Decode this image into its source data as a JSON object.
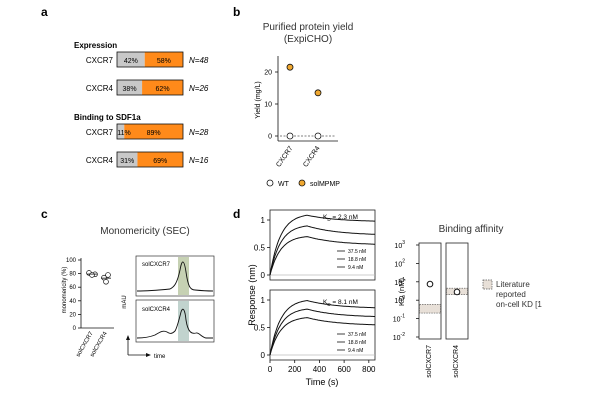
{
  "panel_labels": {
    "a": "a",
    "b": "b",
    "c": "c",
    "d": "d"
  },
  "panel_a": {
    "sections": [
      {
        "title": "Expression",
        "rows": [
          {
            "label": "CXCR7",
            "grey_pct": 42,
            "grey_text": "42%",
            "orange_text": "58%",
            "n_text": "N=48"
          },
          {
            "label": "CXCR4",
            "grey_pct": 38,
            "grey_text": "38%",
            "orange_text": "62%",
            "n_text": "N=26"
          }
        ]
      },
      {
        "title": "Binding to SDF1a",
        "rows": [
          {
            "label": "CXCR7",
            "grey_pct": 11,
            "grey_text": "11%",
            "orange_text": "89%",
            "n_text": "N=28"
          },
          {
            "label": "CXCR4",
            "grey_pct": 31,
            "grey_text": "31%",
            "orange_text": "69%",
            "n_text": "N=16"
          }
        ]
      }
    ]
  },
  "panel_b": {
    "title_line1": "Purified protein yield",
    "title_line2": "(ExpiCHO)",
    "ylabel": "Yield (mg/L)",
    "yticks": [
      "0",
      "10",
      "20"
    ],
    "xticks": [
      "CXCR7",
      "CXCR4"
    ],
    "legend": {
      "wt": "WT",
      "sol": "solMPMP"
    }
  },
  "panel_c": {
    "title": "Monomericity (SEC)",
    "ylabel": "monomericity (%)",
    "yticks": [
      "0",
      "20",
      "40",
      "60",
      "80",
      "100"
    ],
    "xticks": [
      "solCXCR7",
      "solCXCR4"
    ],
    "trace_labels": [
      "solCXCR7",
      "solCXCR4"
    ],
    "mau_label": "mAU",
    "time_label": "time"
  },
  "panel_d": {
    "top_kd_k": "K",
    "top_kd_sub": "D",
    "top_kd_value": " = 2.3 nM",
    "bottom_kd_k": "K",
    "bottom_kd_sub": "D",
    "bottom_kd_value": " = 8.1 nM",
    "conc_labels": [
      "37.5 nM",
      "18.8 nM",
      "9.4 nM"
    ],
    "ylabel": "Response (nm)",
    "yticks": [
      "0",
      "0.5",
      "1"
    ],
    "xlabel": "Time (s)",
    "xticks": [
      "0",
      "200",
      "400",
      "600",
      "800"
    ],
    "affinity_title": "Binding affinity",
    "affinity_ylabel": "KD (nM)",
    "affinity_yticks": [
      {
        "base": "10",
        "exp": "3"
      },
      {
        "base": "10",
        "exp": "2"
      },
      {
        "base": "10",
        "exp": "1"
      },
      {
        "base": "10",
        "exp": "0"
      },
      {
        "base": "10",
        "exp": "-1"
      },
      {
        "base": "10",
        "exp": "-2"
      }
    ],
    "affinity_xticks": [
      "solCXCR7",
      "solCXCR4"
    ],
    "literature_line1": "Literature",
    "literature_line2": "reported",
    "literature_line3": "on-cell KD [1"
  },
  "chart_data": [
    {
      "type": "bar",
      "title": "Expression",
      "categories": [
        "CXCR7",
        "CXCR4"
      ],
      "series": [
        {
          "name": "grey",
          "values": [
            42,
            38
          ]
        },
        {
          "name": "orange",
          "values": [
            58,
            62
          ]
        }
      ],
      "n": [
        "N=48",
        "N=26"
      ]
    },
    {
      "type": "bar",
      "title": "Binding to SDF1a",
      "categories": [
        "CXCR7",
        "CXCR4"
      ],
      "series": [
        {
          "name": "grey",
          "values": [
            11,
            31
          ]
        },
        {
          "name": "orange",
          "values": [
            89,
            69
          ]
        }
      ],
      "n": [
        "N=28",
        "N=16"
      ]
    },
    {
      "type": "scatter",
      "title": "Purified protein yield (ExpiCHO)",
      "ylabel": "Yield (mg/L)",
      "ylim": [
        0,
        25
      ],
      "categories": [
        "CXCR7",
        "CXCR4"
      ],
      "series": [
        {
          "name": "WT",
          "values": [
            0,
            0
          ]
        },
        {
          "name": "solMPMP",
          "values": [
            21.5,
            13.5
          ]
        }
      ]
    },
    {
      "type": "scatter",
      "title": "Monomericity (SEC)",
      "ylabel": "monomericity (%)",
      "ylim": [
        0,
        100
      ],
      "categories": [
        "solCXCR7",
        "solCXCR4"
      ],
      "points": [
        [
          81,
          79,
          78
        ],
        [
          74,
          68,
          78
        ]
      ],
      "means": [
        79.3,
        73.3
      ]
    },
    {
      "type": "line",
      "title": "SEC traces",
      "series": [
        {
          "name": "solCXCR7",
          "highlight": "#a8b98a"
        },
        {
          "name": "solCXCR4",
          "highlight": "#9fbcb4"
        }
      ]
    },
    {
      "type": "line",
      "title": "Binding kinetics",
      "xlabel": "Time (s)",
      "ylabel": "Response (nm)",
      "xlim": [
        0,
        850
      ],
      "ylim": [
        0,
        1.2
      ],
      "panels": [
        {
          "kd": "2.3 nM",
          "assoc_end": 300,
          "plateaus": [
            1.12,
            0.92,
            0.72
          ],
          "end_values": [
            0.98,
            0.74,
            0.56
          ],
          "concentrations": [
            "37.5 nM",
            "18.8 nM",
            "9.4 nM"
          ]
        },
        {
          "kd": "8.1 nM",
          "assoc_end": 300,
          "plateaus": [
            1.02,
            0.86,
            0.7
          ],
          "end_values": [
            0.86,
            0.7,
            0.55
          ],
          "concentrations": [
            "37.5 nM",
            "18.8 nM",
            "9.4 nM"
          ]
        }
      ]
    },
    {
      "type": "scatter",
      "title": "Binding affinity",
      "ylabel": "KD (nM)",
      "yscale": "log",
      "ylim": [
        0.01,
        1000
      ],
      "categories": [
        "solCXCR7",
        "solCXCR4"
      ],
      "values": [
        7.5,
        2.8
      ],
      "literature_ranges": [
        [
          0.2,
          0.6
        ],
        [
          2.0,
          4.5
        ]
      ]
    }
  ],
  "colors": {
    "grey": "#c8c8c8",
    "orange": "#ff8a1a",
    "gold": "#f0a830",
    "olive_band": "#a8b98a",
    "teal_band": "#9fbcb4",
    "axis": "#111111",
    "lit_box": "#e8e0d8"
  }
}
